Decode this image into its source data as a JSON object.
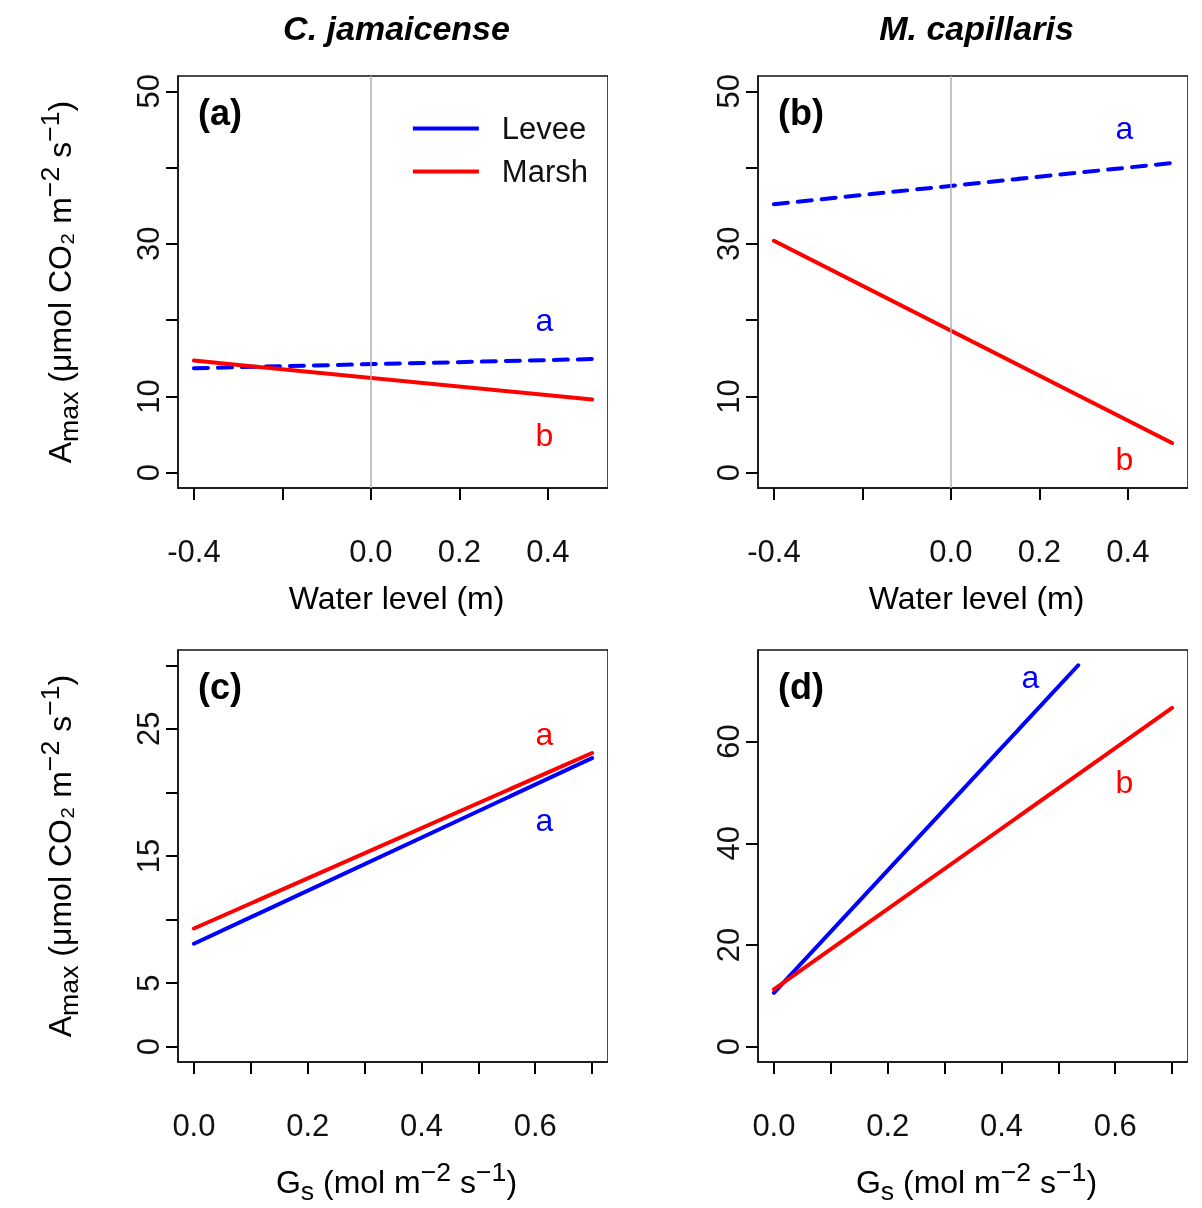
{
  "chart_data": [
    {
      "type": "line",
      "title": "C. jamaicense",
      "xlabel": "Water level (m)",
      "ylabel": "A$_{max}$ (μmol CO₂ m$^{−2}$ s$^{−1}$)",
      "x": [
        -0.4,
        0.5
      ],
      "marker": "none",
      "grid": false,
      "legend": "top right",
      "series": [
        {
          "name": "Levee",
          "color": "#0000ff",
          "values": [
            13.7,
            14.9
          ],
          "line_style": "dashed"
        },
        {
          "name": "Marsh",
          "color": "#ff0000",
          "values": [
            14.7,
            9.6
          ],
          "line_style": "solid"
        }
      ],
      "xlim": [
        -0.436,
        0.536
      ],
      "xticks": [
        -0.4,
        {
          "value": -0.2,
          "label": null
        },
        {
          "value": 0,
          "label": "0.0"
        },
        0.2,
        0.4
      ],
      "ylim": [
        -2,
        52
      ],
      "yticks": [
        0,
        10,
        {
          "value": 20,
          "label": null
        },
        30,
        {
          "value": 40,
          "label": null
        },
        50
      ],
      "ref_lines": [
        {
          "axis": "x",
          "value": 0,
          "color": "#b0b0b0"
        }
      ],
      "annotations": [
        "(a)",
        "a",
        "b"
      ]
    },
    {
      "type": "line",
      "title": "M. capillaris",
      "xlabel": "Water level (m)",
      "x": [
        -0.4,
        0.5
      ],
      "marker": "none",
      "grid": false,
      "series": [
        {
          "color": "#0000ff",
          "values": [
            35.2,
            40.6
          ],
          "line_style": "dashed"
        },
        {
          "color": "#ff0000",
          "values": [
            30.4,
            3.9
          ],
          "line_style": "solid"
        }
      ],
      "xlim": [
        -0.436,
        0.536
      ],
      "xticks": [
        -0.4,
        {
          "value": -0.2,
          "label": null
        },
        {
          "value": 0,
          "label": "0.0"
        },
        0.2,
        0.4
      ],
      "ylim": [
        -2,
        52
      ],
      "yticks": [
        0,
        10,
        {
          "value": 20,
          "label": null
        },
        30,
        {
          "value": 40,
          "label": null
        },
        50
      ],
      "ref_lines": [
        {
          "axis": "x",
          "value": 0,
          "color": "#b0b0b0"
        }
      ],
      "annotations": [
        "(b)",
        "a",
        "b"
      ]
    },
    {
      "type": "line",
      "xlabel": "G$_{s}$ (mol m$^{−2}$ s$^{−1}$)",
      "ylabel": "A$_{max}$ (μmol CO₂ m$^{−2}$ s$^{−1}$)",
      "x": [
        0,
        0.7
      ],
      "marker": "none",
      "grid": false,
      "series": [
        {
          "color": "#0000ff",
          "values": [
            8.1,
            22.7
          ],
          "line_style": "solid"
        },
        {
          "color": "#ff0000",
          "values": [
            9.3,
            23.1
          ],
          "line_style": "solid"
        }
      ],
      "xlim": [
        -0.028,
        0.728
      ],
      "xticks": [
        {
          "value": 0,
          "label": "0.0"
        },
        {
          "value": 0.1,
          "label": null
        },
        0.2,
        {
          "value": 0.3,
          "label": null
        },
        0.4,
        {
          "value": 0.5,
          "label": null
        },
        0.6,
        {
          "value": 0.7,
          "label": null
        }
      ],
      "ylim": [
        -1.2,
        31.2
      ],
      "yticks": [
        0,
        5,
        {
          "value": 10,
          "label": null
        },
        15,
        {
          "value": 20,
          "label": null
        },
        25,
        {
          "value": 30,
          "label": null
        }
      ],
      "annotations": [
        "(c)",
        "a",
        "a"
      ]
    },
    {
      "type": "line",
      "xlabel": "G$_{s}$ (mol m$^{−2}$ s$^{−1}$)",
      "x": [
        0,
        0.7
      ],
      "marker": "none",
      "grid": false,
      "series": [
        {
          "color": "#0000ff",
          "x": [
            0,
            0.535
          ],
          "values": [
            10.6,
            75
          ],
          "line_style": "solid"
        },
        {
          "color": "#ff0000",
          "values": [
            11.3,
            66.6
          ],
          "line_style": "solid"
        }
      ],
      "xlim": [
        -0.028,
        0.728
      ],
      "xticks": [
        {
          "value": 0,
          "label": "0.0"
        },
        {
          "value": 0.1,
          "label": null
        },
        0.2,
        {
          "value": 0.3,
          "label": null
        },
        0.4,
        {
          "value": 0.5,
          "label": null
        },
        0.6,
        {
          "value": 0.7,
          "label": null
        }
      ],
      "ylim": [
        -3,
        78
      ],
      "yticks": [
        0,
        20,
        40,
        60
      ],
      "annotations": [
        "(d)",
        "a",
        "b"
      ]
    }
  ]
}
